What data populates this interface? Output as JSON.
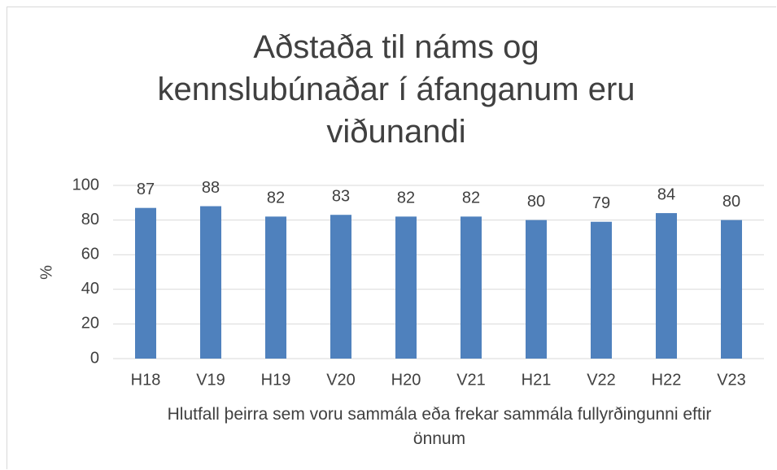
{
  "chart_data": {
    "type": "bar",
    "title": "Aðstaða til náms og kennslubúnaðar í áfanganum eru viðunandi",
    "x_label": "Hlutfall þeirra sem voru sammála eða frekar sammála fullyrðingunni eftir önnum",
    "y_label": "%",
    "categories": [
      "H18",
      "V19",
      "H19",
      "V20",
      "H20",
      "V21",
      "H21",
      "V22",
      "H22",
      "V23"
    ],
    "values": [
      87,
      88,
      82,
      83,
      82,
      82,
      80,
      79,
      84,
      80
    ],
    "color": "#4f81bd",
    "ylim": [
      0,
      100
    ],
    "yticks": [
      0,
      20,
      40,
      60,
      80,
      100
    ],
    "grid": true
  }
}
